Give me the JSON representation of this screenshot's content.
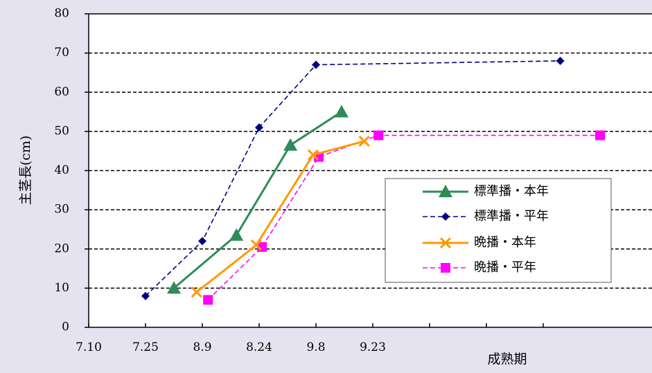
{
  "chart_data": {
    "type": "line",
    "title": "",
    "ylabel": "主茎長(cm)",
    "xlabel": "成熟期",
    "ylim": [
      0,
      80
    ],
    "yticks": [
      0,
      10,
      20,
      30,
      40,
      50,
      60,
      70,
      80
    ],
    "grid": "horizontal dashed",
    "legend_position": "right",
    "x_categories": [
      "7.10",
      "7.25",
      "8.9",
      "8.24",
      "9.8",
      "9.23",
      "",
      "",
      "成熟期"
    ],
    "series": [
      {
        "name": "標準播・本年",
        "color": "#2e8b57",
        "line_style": "solid",
        "marker": "triangle",
        "points": [
          {
            "x": 1.5,
            "y": 10
          },
          {
            "x": 2.6,
            "y": 23.5
          },
          {
            "x": 3.55,
            "y": 46.5
          },
          {
            "x": 4.45,
            "y": 55
          }
        ]
      },
      {
        "name": "標準播・平年",
        "color": "#000080",
        "line_style": "dashed",
        "marker": "diamond",
        "points": [
          {
            "x": 1.0,
            "y": 8
          },
          {
            "x": 2.0,
            "y": 22
          },
          {
            "x": 3.0,
            "y": 51
          },
          {
            "x": 4.0,
            "y": 67
          },
          {
            "x": 8.3,
            "y": 68
          }
        ]
      },
      {
        "name": "晩播・本年",
        "color": "#ff9900",
        "line_style": "solid",
        "marker": "x",
        "points": [
          {
            "x": 1.9,
            "y": 9
          },
          {
            "x": 2.95,
            "y": 21
          },
          {
            "x": 3.95,
            "y": 44
          },
          {
            "x": 4.85,
            "y": 47.5
          }
        ]
      },
      {
        "name": "晩播・平年",
        "color": "#ff00ff",
        "line_style": "dashed",
        "marker": "square",
        "points": [
          {
            "x": 2.1,
            "y": 7
          },
          {
            "x": 3.05,
            "y": 20.5
          },
          {
            "x": 4.05,
            "y": 43.5
          },
          {
            "x": 5.1,
            "y": 49
          },
          {
            "x": 9.0,
            "y": 49
          }
        ]
      }
    ]
  }
}
